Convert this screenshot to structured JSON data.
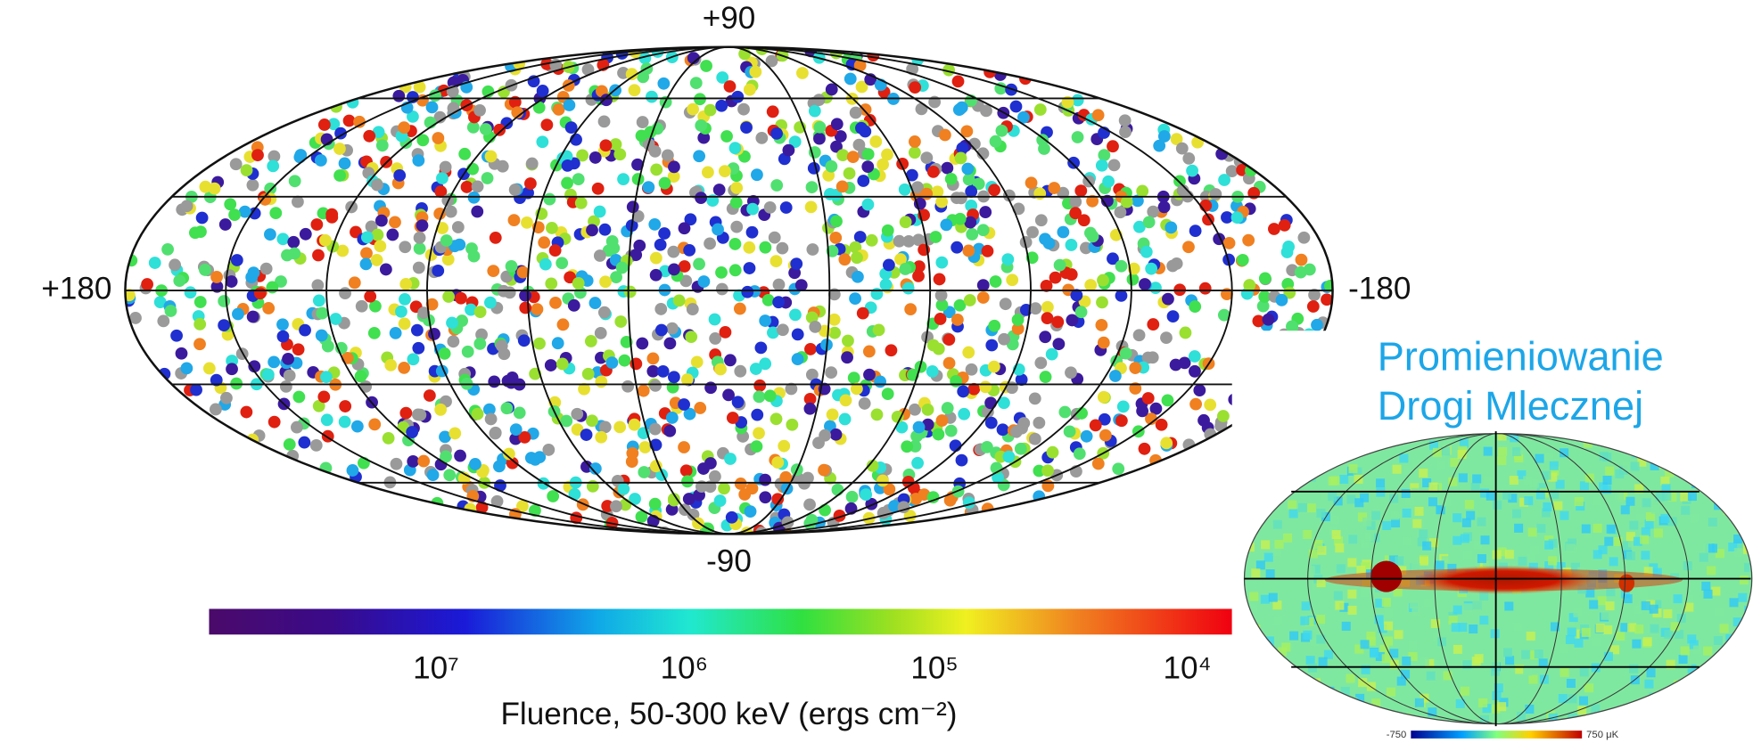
{
  "gamma_map": {
    "lat_labels": {
      "top": "+90",
      "bottom": "-90"
    },
    "lon_labels": {
      "left": "+180",
      "right": "-180"
    },
    "colorbar": {
      "tick_labels": [
        "10⁷",
        "10⁶",
        "10⁵",
        "10⁴"
      ],
      "title": "Fluence, 50-300 keV (ergs cm⁻²)"
    }
  },
  "inset": {
    "title_lines": [
      "Promieniowanie",
      "Drogi Mlecznej"
    ],
    "scale_min": "-750",
    "scale_max": "750 μK"
  }
}
